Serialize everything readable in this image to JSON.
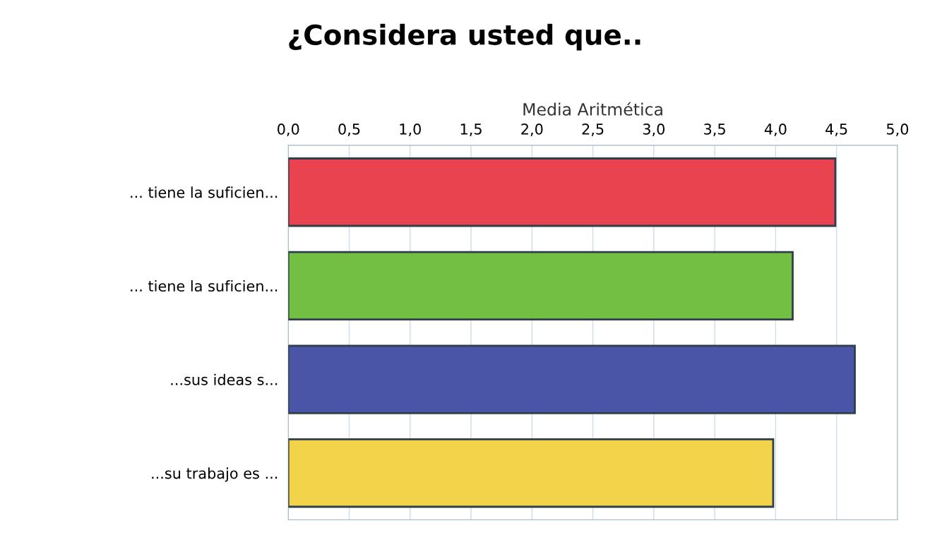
{
  "chart_data": {
    "type": "bar",
    "orientation": "horizontal",
    "title": "¿Considera usted que..",
    "xlabel": "Media Aritmética",
    "categories": [
      "... tiene la suficien...",
      "... tiene la suficien...",
      "...sus ideas s...",
      "...su trabajo es ..."
    ],
    "values": [
      4.49,
      4.14,
      4.65,
      3.98
    ],
    "colors": [
      "#e8434f",
      "#72bf44",
      "#4b55a8",
      "#f2d34a"
    ],
    "xlim": [
      0,
      5
    ],
    "xticks": [
      {
        "value": 0,
        "label": "0,0"
      },
      {
        "value": 0.5,
        "label": "0,5"
      },
      {
        "value": 1,
        "label": "1,0"
      },
      {
        "value": 1.5,
        "label": "1,5"
      },
      {
        "value": 2,
        "label": "2,0"
      },
      {
        "value": 2.5,
        "label": "2,5"
      },
      {
        "value": 3,
        "label": "3,0"
      },
      {
        "value": 3.5,
        "label": "3,5"
      },
      {
        "value": 4,
        "label": "4,0"
      },
      {
        "value": 4.5,
        "label": "4,5"
      },
      {
        "value": 5,
        "label": "5,0"
      }
    ],
    "grid": "x"
  }
}
